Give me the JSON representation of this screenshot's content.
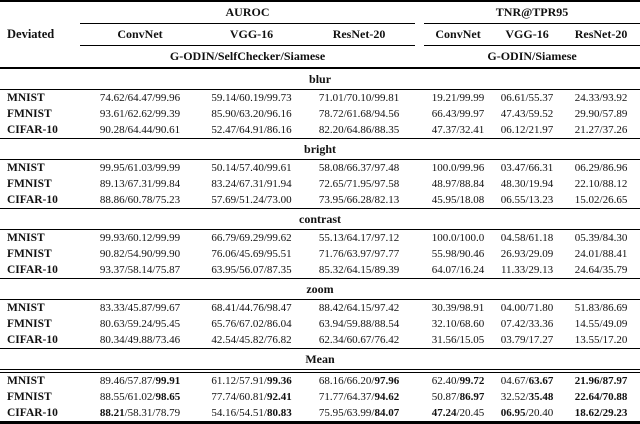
{
  "table": {
    "corner_label": "Deviated",
    "groups": [
      {
        "label": "AUROC",
        "subcolumns": [
          "ConvNet",
          "VGG-16",
          "ResNet-20"
        ],
        "methods_label": "G-ODIN/SelfChecker/Siamese"
      },
      {
        "label": "TNR@TPR95",
        "subcolumns": [
          "ConvNet",
          "VGG-16",
          "ResNet-20"
        ],
        "methods_label": "G-ODIN/Siamese"
      }
    ],
    "sections": [
      {
        "label": "blur",
        "rows": [
          {
            "dataset": "MNIST",
            "cells": [
              "74.62/64.47/99.96",
              "59.14/60.19/99.73",
              "71.01/70.10/99.81",
              "19.21/99.99",
              "06.61/55.37",
              "24.33/93.92"
            ]
          },
          {
            "dataset": "FMNIST",
            "cells": [
              "93.61/62.62/99.39",
              "85.90/63.20/96.16",
              "78.72/61.68/94.56",
              "66.43/99.97",
              "47.43/59.52",
              "29.90/57.89"
            ]
          },
          {
            "dataset": "CIFAR-10",
            "cells": [
              "90.28/64.44/90.61",
              "52.47/64.91/86.16",
              "82.20/64.86/88.35",
              "47.37/32.41",
              "06.12/21.97",
              "21.27/37.26"
            ]
          }
        ]
      },
      {
        "label": "bright",
        "rows": [
          {
            "dataset": "MNIST",
            "cells": [
              "99.95/61.03/99.99",
              "50.14/57.40/99.61",
              "58.08/66.37/97.48",
              "100.0/99.96",
              "03.47/66.31",
              "06.29/86.96"
            ]
          },
          {
            "dataset": "FMNIST",
            "cells": [
              "89.13/67.31/99.84",
              "83.24/67.31/91.94",
              "72.65/71.95/97.58",
              "48.97/88.84",
              "48.30/19.94",
              "22.10/88.12"
            ]
          },
          {
            "dataset": "CIFAR-10",
            "cells": [
              "88.86/60.78/75.23",
              "57.69/51.24/73.00",
              "73.95/66.28/82.13",
              "45.95/18.08",
              "06.55/13.23",
              "15.02/26.65"
            ]
          }
        ]
      },
      {
        "label": "contrast",
        "rows": [
          {
            "dataset": "MNIST",
            "cells": [
              "99.93/60.12/99.99",
              "66.79/69.29/99.62",
              "55.13/64.17/97.12",
              "100.0/100.0",
              "04.58/61.18",
              "05.39/84.30"
            ]
          },
          {
            "dataset": "FMNIST",
            "cells": [
              "90.82/54.90/99.90",
              "76.06/45.69/95.51",
              "71.76/63.97/97.77",
              "55.98/90.46",
              "26.93/29.09",
              "24.01/88.41"
            ]
          },
          {
            "dataset": "CIFAR-10",
            "cells": [
              "93.37/58.14/75.87",
              "63.95/56.07/87.35",
              "85.32/64.15/89.39",
              "64.07/16.24",
              "11.33/29.13",
              "24.64/35.79"
            ]
          }
        ]
      },
      {
        "label": "zoom",
        "rows": [
          {
            "dataset": "MNIST",
            "cells": [
              "83.33/45.87/99.67",
              "68.41/44.76/98.47",
              "88.42/64.15/97.42",
              "30.39/98.91",
              "04.00/71.80",
              "51.83/86.69"
            ]
          },
          {
            "dataset": "FMNIST",
            "cells": [
              "80.63/59.24/95.45",
              "65.76/67.02/86.04",
              "63.94/59.88/88.54",
              "32.10/68.60",
              "07.42/33.36",
              "14.55/49.09"
            ]
          },
          {
            "dataset": "CIFAR-10",
            "cells": [
              "80.34/49.88/73.46",
              "42.54/45.82/76.82",
              "62.34/60.67/76.42",
              "31.56/15.05",
              "03.79/17.27",
              "13.55/17.20"
            ]
          }
        ]
      },
      {
        "label": "Mean",
        "mean": true,
        "rows": [
          {
            "dataset": "MNIST",
            "cells": [
              [
                [
                  "89.46/57.87/",
                  0
                ],
                [
                  "99.91",
                  1
                ]
              ],
              [
                [
                  "61.12/57.91/",
                  0
                ],
                [
                  "99.36",
                  1
                ]
              ],
              [
                [
                  "68.16/66.20/",
                  0
                ],
                [
                  "97.96",
                  1
                ]
              ],
              [
                [
                  "62.40/",
                  0
                ],
                [
                  "99.72",
                  1
                ]
              ],
              [
                [
                  "04.67/",
                  0
                ],
                [
                  "63.67",
                  1
                ]
              ],
              [
                [
                  "21.96/87.97",
                  1
                ]
              ]
            ]
          },
          {
            "dataset": "FMNIST",
            "cells": [
              [
                [
                  "88.55/61.02/",
                  0
                ],
                [
                  "98.65",
                  1
                ]
              ],
              [
                [
                  "77.74/60.81/",
                  0
                ],
                [
                  "92.41",
                  1
                ]
              ],
              [
                [
                  "71.77/64.37/",
                  0
                ],
                [
                  "94.62",
                  1
                ]
              ],
              [
                [
                  "50.87/",
                  0
                ],
                [
                  "86.97",
                  1
                ]
              ],
              [
                [
                  "32.52/",
                  0
                ],
                [
                  "35.48",
                  1
                ]
              ],
              [
                [
                  "22.64/70.88",
                  1
                ]
              ]
            ]
          },
          {
            "dataset": "CIFAR-10",
            "cells": [
              [
                [
                  "88.21",
                  1
                ],
                [
                  "/58.31/78.79",
                  0
                ]
              ],
              [
                [
                  "54.16/54.51/",
                  0
                ],
                [
                  "80.83",
                  1
                ]
              ],
              [
                [
                  "75.95/63.99/",
                  0
                ],
                [
                  "84.07",
                  1
                ]
              ],
              [
                [
                  "47.24",
                  1
                ],
                [
                  "/20.45",
                  0
                ]
              ],
              [
                [
                  "06.95",
                  1
                ],
                [
                  "/20.40",
                  0
                ]
              ],
              [
                [
                  "18.62/29.23",
                  1
                ]
              ]
            ]
          }
        ]
      }
    ]
  }
}
